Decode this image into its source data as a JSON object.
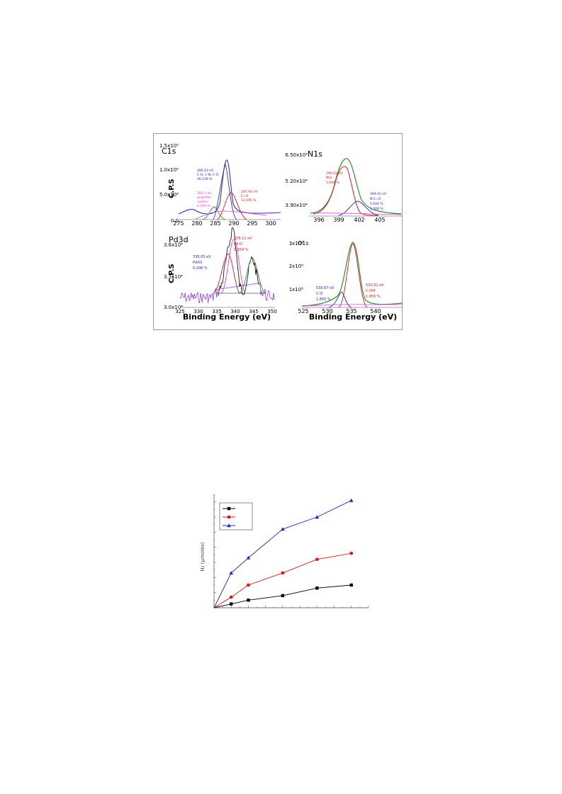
{
  "colors": {
    "frame": "#9a9a9a",
    "axis": "#444444",
    "envelope": "#2f8f2f",
    "blue": "#2323c8",
    "red": "#e01a1a",
    "magenta": "#e040e0",
    "purple": "#8a2be2",
    "black": "#000000",
    "navy": "#3333aa"
  },
  "xps_panels": {
    "x_axis_label": "Binding Energy (eV)",
    "c1s": {
      "title": "C1s",
      "y_axis_label": "C.P.S",
      "y_ticks": [
        "1.5x10⁵",
        "1.0x10⁵",
        "5.0x10⁴",
        "0.0"
      ],
      "x_ticks": [
        "275",
        "280",
        "285",
        "290",
        "295",
        "300"
      ],
      "peak1": [
        "286.43 eV",
        "C-H, C-N, C-O",
        "36.139 %"
      ],
      "peak2": [
        "287.90 eV",
        "C=O",
        "13.195 %"
      ],
      "peak3": [
        "284.5 eV",
        "graphitic",
        "carbon",
        "4.359 %"
      ]
    },
    "n1s": {
      "title": "N1s",
      "y_ticks": [
        "6.50x10⁴",
        "5.20x10⁴",
        "3.90x10⁴"
      ],
      "x_ticks": [
        "396",
        "399",
        "402",
        "405"
      ],
      "peak1": [
        "399.42 eV",
        "NH₂",
        "5.044 %"
      ],
      "peak2": [
        "399.42 eV",
        "N-C=O",
        "5.044 %",
        "1.508 %"
      ]
    },
    "pd3d": {
      "title": "Pd3d",
      "y_axis_label": "C.P.S",
      "y_ticks": [
        "3.6x10⁴",
        "3.3x10⁴",
        "3.0x10⁴"
      ],
      "x_ticks": [
        "325",
        "330",
        "335",
        "340",
        "345",
        "350"
      ],
      "peak1": [
        "336.05 eV",
        "Pd(0)",
        "0.208 %"
      ],
      "peak2": [
        "338.21 eV",
        "Pd-O",
        "0.154 %"
      ]
    },
    "o1s": {
      "title": "O1s",
      "y_ticks": [
        "3x10⁵",
        "2x10⁵",
        "1x10⁵"
      ],
      "x_ticks": [
        "525",
        "530",
        "535",
        "540"
      ],
      "peak1": [
        "530.67 eV",
        "C-O",
        "1.855 %"
      ],
      "peak2": [
        "532.91 eV",
        "C-OH",
        "1.855 %"
      ]
    }
  },
  "h2_chart": {
    "y_axis_label": "H₂ (µmoles)",
    "legend_labels": [
      "",
      "",
      ""
    ],
    "series": [
      {
        "marker": "square",
        "color": "#000000",
        "points": [
          [
            0,
            0
          ],
          [
            1,
            2.5
          ],
          [
            2,
            5
          ],
          [
            4,
            8
          ],
          [
            6,
            13
          ],
          [
            8,
            15
          ]
        ]
      },
      {
        "marker": "circle",
        "color": "#e01a1a",
        "points": [
          [
            0,
            0
          ],
          [
            1,
            7
          ],
          [
            2,
            15
          ],
          [
            4,
            23
          ],
          [
            6,
            32
          ],
          [
            8,
            36
          ]
        ]
      },
      {
        "marker": "triangle",
        "color": "#2323c8",
        "points": [
          [
            0,
            0
          ],
          [
            1,
            23
          ],
          [
            2,
            33
          ],
          [
            4,
            52
          ],
          [
            6,
            60
          ],
          [
            8,
            71
          ]
        ]
      }
    ],
    "xlim": [
      0,
      9
    ],
    "ylim": [
      0,
      75
    ]
  },
  "chart_data": [
    {
      "type": "line",
      "title": "C1s",
      "ylabel": "C.P.S",
      "xlabel": "Binding Energy (eV)",
      "xlim": [
        275,
        300
      ],
      "ylim": [
        0,
        150000
      ],
      "x_ticks": [
        275,
        280,
        285,
        290,
        295,
        300
      ],
      "peaks": [
        {
          "position_eV": 286.43,
          "assignment": "C-H, C-N, C-O",
          "percent": 36.139
        },
        {
          "position_eV": 287.9,
          "assignment": "C=O",
          "percent": 13.195
        },
        {
          "position_eV": 284.5,
          "assignment": "graphitic carbon",
          "percent": 4.359
        }
      ]
    },
    {
      "type": "line",
      "title": "N1s",
      "xlim": [
        394,
        406
      ],
      "ylim": [
        34000,
        68000
      ],
      "x_ticks": [
        396,
        399,
        402,
        405
      ],
      "peaks": [
        {
          "position_eV": 399.42,
          "assignment": "NH₂",
          "percent": 5.044
        },
        {
          "position_eV": 399.42,
          "assignment": "N-C=O",
          "percent": 5.044
        }
      ]
    },
    {
      "type": "line",
      "title": "Pd3d",
      "ylabel": "C.P.S",
      "xlabel": "Binding Energy (eV)",
      "xlim": [
        325,
        350
      ],
      "ylim": [
        30000,
        37000
      ],
      "x_ticks": [
        325,
        330,
        335,
        340,
        345,
        350
      ],
      "peaks": [
        {
          "position_eV": 336.05,
          "assignment": "Pd(0)",
          "percent": 0.208
        },
        {
          "position_eV": 338.21,
          "assignment": "Pd-O",
          "percent": 0.154
        }
      ]
    },
    {
      "type": "line",
      "title": "O1s",
      "xlabel": "Binding Energy (eV)",
      "xlim": [
        524,
        543
      ],
      "ylim": [
        50000,
        320000
      ],
      "x_ticks": [
        525,
        530,
        535,
        540
      ],
      "peaks": [
        {
          "position_eV": 530.67,
          "assignment": "C-O",
          "percent": 1.855
        },
        {
          "position_eV": 532.91,
          "assignment": "C-OH",
          "percent": 1.855
        }
      ]
    },
    {
      "type": "line",
      "ylabel": "H₂ (µmoles)",
      "xlim": [
        0,
        9
      ],
      "ylim": [
        0,
        75
      ],
      "series": [
        {
          "marker": "square",
          "x": [
            0,
            1,
            2,
            4,
            6,
            8
          ],
          "y": [
            0,
            2.5,
            5,
            8,
            13,
            15
          ]
        },
        {
          "marker": "circle",
          "x": [
            0,
            1,
            2,
            4,
            6,
            8
          ],
          "y": [
            0,
            7,
            15,
            23,
            32,
            36
          ]
        },
        {
          "marker": "triangle",
          "x": [
            0,
            1,
            2,
            4,
            6,
            8
          ],
          "y": [
            0,
            23,
            33,
            52,
            60,
            71
          ]
        }
      ]
    }
  ]
}
